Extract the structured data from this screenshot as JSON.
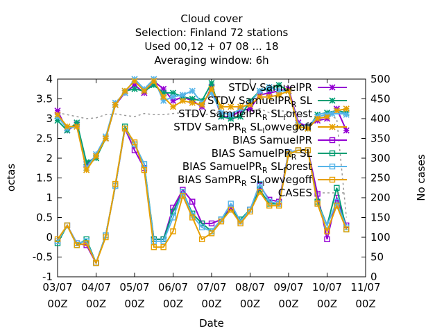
{
  "chart_data": {
    "type": "line",
    "title_lines": [
      "Cloud cover",
      "Selection: Finland     72 stations",
      "Used  00,12  + 07 08 ... 18",
      "Averaging window:  6h"
    ],
    "xlabel": "Date",
    "ylabel": "octas",
    "y2label": "No cases",
    "xlim": [
      0,
      16
    ],
    "ylim": [
      -1,
      4
    ],
    "y2lim": [
      0,
      500
    ],
    "x_ticks": [
      {
        "x": 0,
        "l1": "03/07",
        "l2": "00Z"
      },
      {
        "x": 2,
        "l1": "04/07",
        "l2": "00Z"
      },
      {
        "x": 4,
        "l1": "05/07",
        "l2": "00Z"
      },
      {
        "x": 6,
        "l1": "06/07",
        "l2": "00Z"
      },
      {
        "x": 8,
        "l1": "07/07",
        "l2": "00Z"
      },
      {
        "x": 10,
        "l1": "08/07",
        "l2": "00Z"
      },
      {
        "x": 12,
        "l1": "09/07",
        "l2": "00Z"
      },
      {
        "x": 14,
        "l1": "10/07",
        "l2": "00Z"
      },
      {
        "x": 16,
        "l1": "11/07",
        "l2": "00Z"
      }
    ],
    "y_ticks": [
      "-1",
      "-0.5",
      "0",
      "0.5",
      "1",
      "1.5",
      "2",
      "2.5",
      "3",
      "3.5",
      "4"
    ],
    "y2_ticks": [
      "0",
      "50",
      "100",
      "150",
      "200",
      "250",
      "300",
      "350",
      "400",
      "450",
      "500"
    ],
    "grid": false,
    "legend_position": "top-right",
    "x": [
      0,
      0.5,
      1,
      1.5,
      2,
      2.5,
      3,
      3.5,
      4,
      4.5,
      5,
      5.5,
      6,
      6.5,
      7,
      7.5,
      8,
      8.5,
      9,
      9.5,
      10,
      10.5,
      11,
      11.5,
      12,
      12.5,
      13,
      13.5,
      14,
      14.5,
      15
    ],
    "series": [
      {
        "name": "STDV SamuelPR",
        "legend_parts": [
          "STDV SamuelPR"
        ],
        "color": "#9400D3",
        "marker": "star",
        "values": [
          3.2,
          2.7,
          2.85,
          1.85,
          2.05,
          2.5,
          3.35,
          3.65,
          3.85,
          3.65,
          3.95,
          3.75,
          3.45,
          3.55,
          3.45,
          3.3,
          3.8,
          3.05,
          3.05,
          3.2,
          3.25,
          3.6,
          3.65,
          3.7,
          3.75,
          2.9,
          2.8,
          2.95,
          3.0,
          3.25,
          2.7
        ]
      },
      {
        "name": "STDV SamuelPR_R SL",
        "legend_parts": [
          "STDV SamuelPR",
          "R",
          " SL"
        ],
        "color": "#009E73",
        "marker": "star-cross",
        "values": [
          2.95,
          2.7,
          2.9,
          1.9,
          2.0,
          2.5,
          3.35,
          3.7,
          3.75,
          3.7,
          3.85,
          3.65,
          3.65,
          3.55,
          3.5,
          3.45,
          3.9,
          3.05,
          3.0,
          3.05,
          3.45,
          3.7,
          3.75,
          3.85,
          3.7,
          2.8,
          2.75,
          3.1,
          3.15,
          3.2,
          3.15
        ]
      },
      {
        "name": "STDV SamuelPR_R SL_forest",
        "legend_parts": [
          "STDV SamuelPR",
          "R",
          " SL",
          "f",
          "orest"
        ],
        "color": "#56B4E9",
        "marker": "star-cross",
        "values": [
          3.05,
          2.75,
          2.8,
          1.75,
          2.1,
          2.55,
          3.4,
          3.65,
          4.0,
          3.75,
          4.0,
          3.45,
          3.55,
          3.6,
          3.7,
          3.4,
          3.65,
          3.15,
          3.1,
          3.25,
          3.4,
          3.7,
          3.8,
          3.7,
          3.7,
          2.85,
          2.8,
          3.05,
          3.1,
          3.2,
          3.1
        ]
      },
      {
        "name": "STDV SamPR_R SL_lowvegoff",
        "legend_parts": [
          "STDV SamPR",
          "R",
          " SL",
          "l",
          "owvegoff"
        ],
        "color": "#E69F00",
        "marker": "star-cross",
        "values": [
          3.1,
          2.8,
          2.8,
          1.7,
          2.05,
          2.5,
          3.35,
          3.7,
          3.95,
          3.7,
          3.95,
          3.55,
          3.3,
          3.45,
          3.4,
          3.35,
          3.75,
          3.3,
          3.3,
          3.3,
          3.35,
          3.55,
          3.55,
          3.6,
          3.7,
          2.8,
          2.75,
          3.0,
          3.05,
          3.2,
          3.25
        ]
      },
      {
        "name": "BIAS SamuelPR",
        "legend_parts": [
          "BIAS SamuelPR"
        ],
        "color": "#9400D3",
        "marker": "square",
        "values": [
          -0.1,
          0.3,
          -0.15,
          -0.2,
          -0.65,
          0.05,
          1.3,
          2.75,
          2.2,
          1.75,
          -0.05,
          -0.05,
          0.75,
          1.2,
          0.9,
          0.35,
          0.35,
          0.45,
          0.75,
          0.4,
          0.7,
          1.3,
          0.95,
          0.9,
          2.15,
          2.2,
          2.2,
          1.1,
          -0.05,
          1.0,
          0.3
        ]
      },
      {
        "name": "BIAS SamuelPR_R SL",
        "legend_parts": [
          "BIAS SamuelPR",
          "R",
          " SL"
        ],
        "color": "#009E73",
        "marker": "square",
        "values": [
          -0.15,
          0.3,
          -0.2,
          -0.05,
          -0.65,
          0.05,
          1.3,
          2.8,
          2.35,
          1.85,
          -0.05,
          -0.05,
          0.65,
          1.15,
          0.6,
          0.35,
          0.15,
          0.45,
          0.7,
          0.45,
          0.7,
          1.2,
          0.85,
          0.85,
          2.1,
          2.2,
          2.2,
          0.9,
          0.3,
          1.25,
          0.2
        ]
      },
      {
        "name": "BIAS SamuelPR_R SL_forest",
        "legend_parts": [
          "BIAS SamuelPR",
          "R",
          " SL",
          "f",
          "orest"
        ],
        "color": "#56B4E9",
        "marker": "square",
        "values": [
          -0.1,
          0.3,
          -0.15,
          -0.1,
          -0.65,
          0.05,
          1.3,
          2.75,
          2.35,
          1.85,
          -0.1,
          -0.1,
          0.5,
          1.15,
          0.55,
          0.25,
          0.15,
          0.45,
          0.85,
          0.4,
          0.7,
          1.35,
          0.9,
          0.85,
          2.15,
          2.2,
          2.2,
          0.85,
          0.3,
          0.9,
          0.25
        ]
      },
      {
        "name": "BIAS SamPR_R SL_lowvegoff",
        "legend_parts": [
          "BIAS SamPR",
          "R",
          " SL",
          "l",
          "owvegoff"
        ],
        "color": "#E69F00",
        "marker": "square",
        "values": [
          -0.05,
          0.3,
          -0.2,
          -0.15,
          -0.65,
          0.0,
          1.35,
          2.75,
          2.4,
          1.7,
          -0.25,
          -0.25,
          0.15,
          1.05,
          0.5,
          -0.05,
          0.1,
          0.4,
          0.7,
          0.35,
          0.65,
          1.15,
          0.8,
          0.8,
          2.1,
          2.2,
          2.2,
          0.85,
          0.15,
          0.8,
          0.2
        ]
      },
      {
        "name": "CASES",
        "legend_parts": [
          "CASES"
        ],
        "color": "#999999",
        "marker": "none",
        "axis": "y2",
        "dashed": true,
        "values": [
          415,
          410,
          405,
          400,
          402,
          410,
          412,
          408,
          405,
          413,
          410,
          410,
          413,
          415,
          410,
          410,
          412,
          415,
          410,
          413,
          418,
          425,
          415,
          420,
          418,
          410,
          405,
          405,
          410,
          400,
          150
        ]
      }
    ]
  }
}
